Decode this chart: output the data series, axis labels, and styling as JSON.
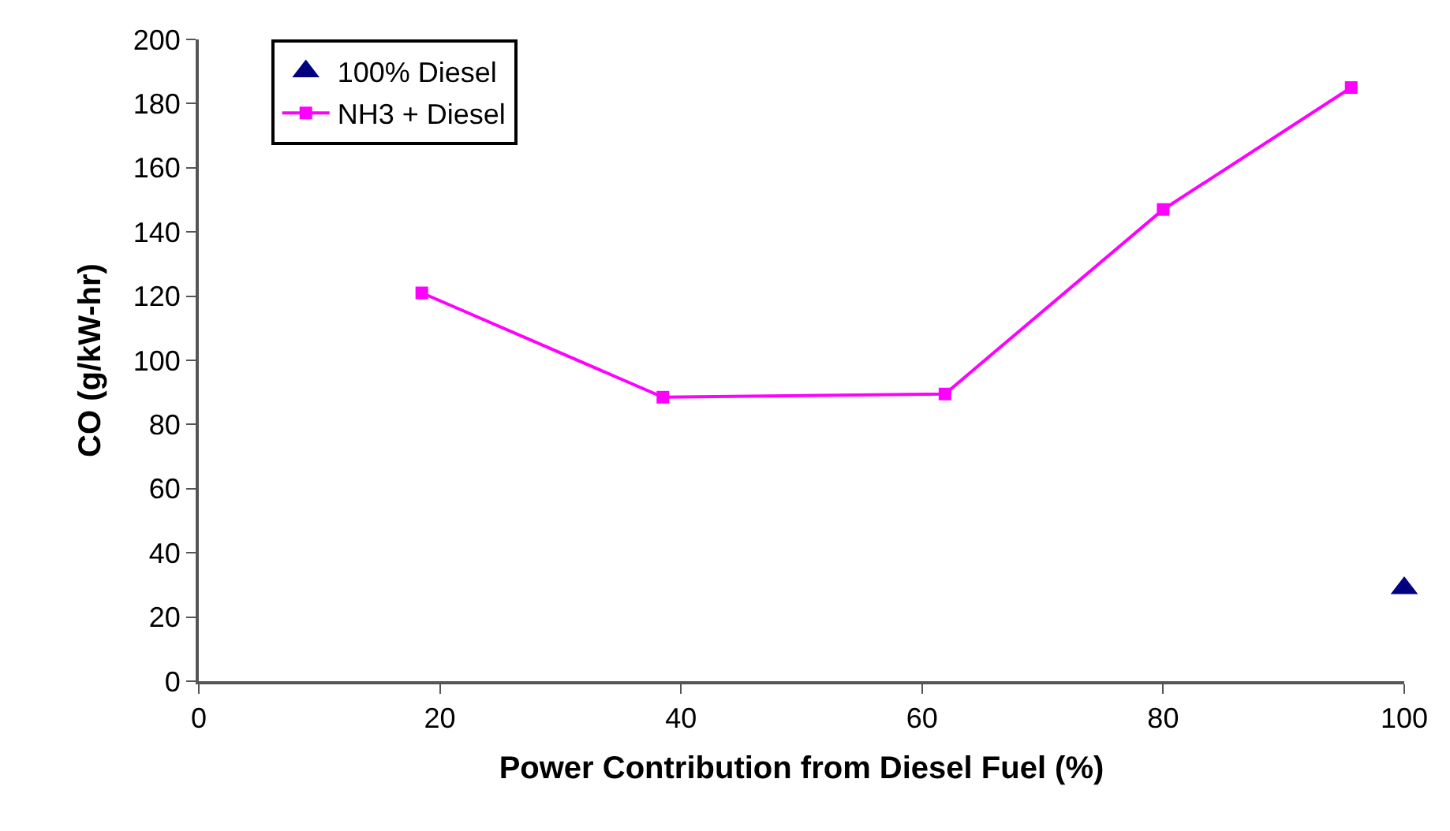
{
  "chart_data": {
    "type": "line",
    "xlabel": "Power Contribution from Diesel Fuel (%)",
    "ylabel": "CO (g/kW-hr)",
    "xlim": [
      0,
      100
    ],
    "xticks": [
      0,
      20,
      40,
      60,
      80,
      100
    ],
    "ylim": [
      0,
      200
    ],
    "yticks": [
      0,
      20,
      40,
      60,
      80,
      100,
      120,
      140,
      160,
      180,
      200
    ],
    "grid": false,
    "legend": "top left",
    "series": [
      {
        "name": "100% Diesel",
        "type": "scatter",
        "marker": "triangle",
        "color": "#000080",
        "x": [
          100
        ],
        "values": [
          29
        ]
      },
      {
        "name": "NH3 + Diesel",
        "marker": "square",
        "line_style": "solid",
        "color": "#ff00ff",
        "x": [
          18.5,
          38.5,
          61.9,
          80,
          95.6
        ],
        "values": [
          121,
          88.5,
          89.5,
          147,
          185
        ]
      }
    ]
  }
}
